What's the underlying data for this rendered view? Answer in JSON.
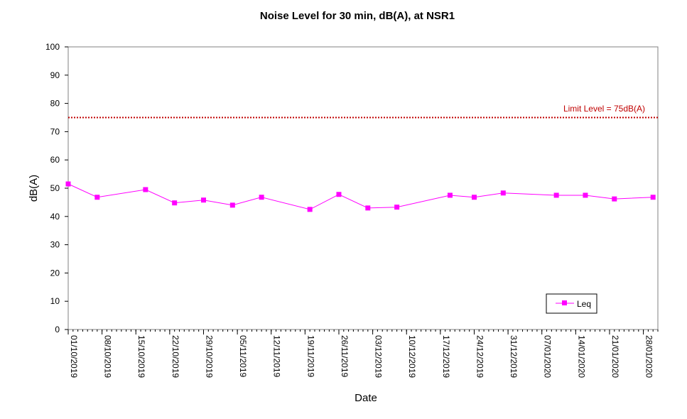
{
  "chart_data": {
    "type": "line",
    "title": "Noise Level for 30 min, dB(A), at NSR1",
    "xlabel": "Date",
    "ylabel": "dB(A)",
    "ylim": [
      0,
      100
    ],
    "yticks": [
      0,
      10,
      20,
      30,
      40,
      50,
      60,
      70,
      80,
      90,
      100
    ],
    "xlim": [
      "2019-10-01",
      "2020-01-31"
    ],
    "xticks": [
      "01/10/2019",
      "08/10/2019",
      "15/10/2019",
      "22/10/2019",
      "29/10/2019",
      "05/11/2019",
      "12/11/2019",
      "19/11/2019",
      "26/11/2019",
      "03/12/2019",
      "10/12/2019",
      "17/12/2019",
      "24/12/2019",
      "31/12/2019",
      "07/01/2020",
      "14/01/2020",
      "21/01/2020",
      "28/01/2020"
    ],
    "grid": false,
    "series": [
      {
        "name": "Leq",
        "color": "#ff00ff",
        "marker": "square",
        "points": [
          {
            "x": "2019-10-01",
            "y": 51.5
          },
          {
            "x": "2019-10-07",
            "y": 46.8
          },
          {
            "x": "2019-10-17",
            "y": 49.5
          },
          {
            "x": "2019-10-23",
            "y": 44.8
          },
          {
            "x": "2019-10-29",
            "y": 45.8
          },
          {
            "x": "2019-11-04",
            "y": 44.0
          },
          {
            "x": "2019-11-10",
            "y": 46.8
          },
          {
            "x": "2019-11-20",
            "y": 42.5
          },
          {
            "x": "2019-11-26",
            "y": 47.8
          },
          {
            "x": "2019-12-02",
            "y": 43.0
          },
          {
            "x": "2019-12-08",
            "y": 43.3
          },
          {
            "x": "2019-12-19",
            "y": 47.5
          },
          {
            "x": "2019-12-24",
            "y": 46.8
          },
          {
            "x": "2019-12-30",
            "y": 48.3
          },
          {
            "x": "2020-01-10",
            "y": 47.5
          },
          {
            "x": "2020-01-16",
            "y": 47.5
          },
          {
            "x": "2020-01-22",
            "y": 46.2
          },
          {
            "x": "2020-01-30",
            "y": 46.8
          }
        ]
      }
    ],
    "reference_line": {
      "label": "Limit Level  = 75dB(A)",
      "y": 75,
      "color": "#c00000",
      "style": "dotted"
    },
    "legend": {
      "position": "bottom-right",
      "entries": [
        "Leq"
      ]
    }
  }
}
